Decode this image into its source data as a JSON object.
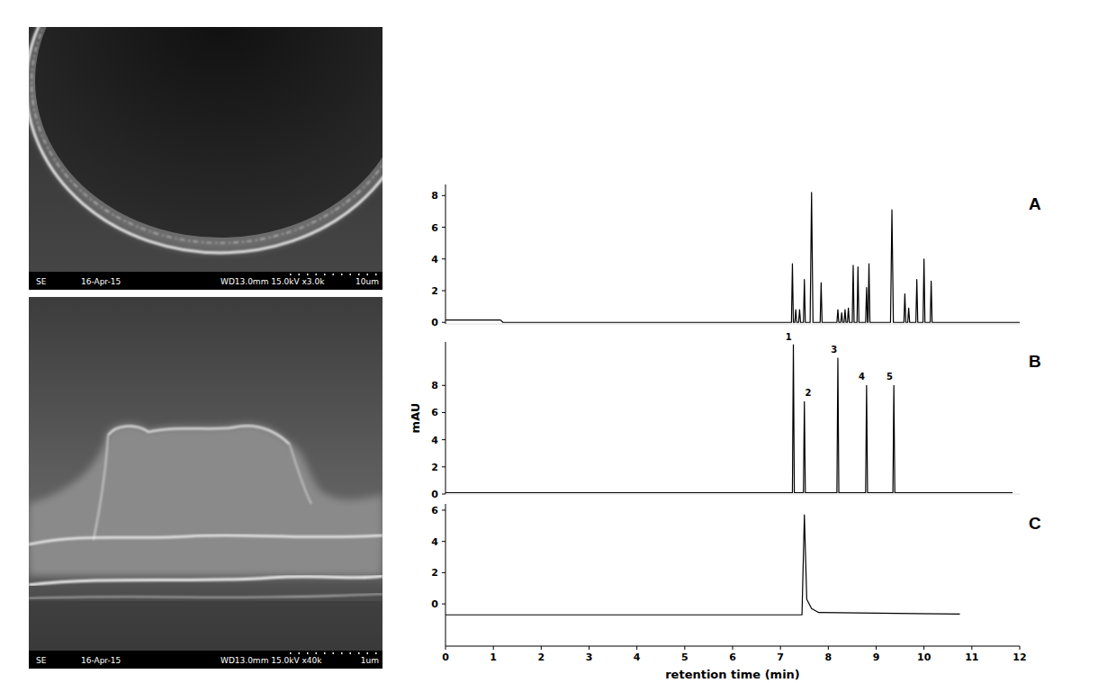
{
  "chart_data": [
    {
      "type": "line",
      "title": "A",
      "color": "#000000",
      "tick_labels": "y",
      "xlim": [
        0,
        12
      ],
      "ylim": [
        -0.1,
        8.7
      ],
      "yticks": [
        0,
        2,
        4,
        6,
        8
      ],
      "x": [
        0,
        1.15,
        1.2,
        7.23,
        7.25,
        7.27,
        7.3,
        7.32,
        7.34,
        7.38,
        7.4,
        7.42,
        7.48,
        7.5,
        7.52,
        7.62,
        7.65,
        7.68,
        7.83,
        7.85,
        7.87,
        8.18,
        8.2,
        8.22,
        8.26,
        8.28,
        8.3,
        8.33,
        8.35,
        8.37,
        8.4,
        8.42,
        8.44,
        8.5,
        8.52,
        8.54,
        8.6,
        8.62,
        8.64,
        8.78,
        8.8,
        8.82,
        8.83,
        8.85,
        8.87,
        9.3,
        9.33,
        9.36,
        9.58,
        9.6,
        9.62,
        9.66,
        9.68,
        9.7,
        9.83,
        9.85,
        9.87,
        9.98,
        10.0,
        10.02,
        10.13,
        10.15,
        10.17,
        12
      ],
      "values": [
        0.15,
        0.15,
        0,
        0,
        3.7,
        0,
        0,
        0.8,
        0,
        0,
        0.8,
        0,
        0,
        2.7,
        0,
        0,
        8.2,
        0,
        0,
        2.5,
        0,
        0,
        0.8,
        0,
        0,
        0.6,
        0,
        0,
        0.8,
        0,
        0,
        0.9,
        0,
        0,
        3.6,
        0,
        0,
        3.5,
        0,
        0,
        2.2,
        0,
        0,
        3.7,
        0,
        0,
        7.1,
        0,
        0,
        1.8,
        0,
        0,
        0.9,
        0,
        0,
        2.7,
        0,
        0,
        4.0,
        0,
        0,
        2.6,
        0,
        0
      ]
    },
    {
      "type": "line",
      "title": "B",
      "y_label": "mAU",
      "color": "#000000",
      "tick_labels": "y",
      "xlim": [
        0,
        12
      ],
      "ylim": [
        0,
        11.2
      ],
      "yticks": [
        0,
        2,
        4,
        6,
        8
      ],
      "x": [
        0,
        7.25,
        7.27,
        7.29,
        7.48,
        7.5,
        7.52,
        8.18,
        8.2,
        8.22,
        8.78,
        8.8,
        8.82,
        9.35,
        9.37,
        9.39,
        11.85
      ],
      "values": [
        0.1,
        0.1,
        11,
        0.1,
        0.1,
        6.8,
        0.1,
        0.1,
        10,
        0.1,
        0.1,
        8,
        0.1,
        0.1,
        8,
        0.1,
        0.1
      ],
      "annotations": [
        {
          "text": "1",
          "x": 7.17,
          "y": 11.35
        },
        {
          "text": "2",
          "x": 7.58,
          "y": 7.2
        },
        {
          "text": "3",
          "x": 8.12,
          "y": 10.4
        },
        {
          "text": "4",
          "x": 8.7,
          "y": 8.4
        },
        {
          "text": "5",
          "x": 9.28,
          "y": 8.4
        }
      ]
    },
    {
      "type": "line",
      "title": "C",
      "x_label": "retention time (min)",
      "color": "#000000",
      "xlim": [
        0,
        12
      ],
      "ylim": [
        -2.7,
        6.4
      ],
      "yticks": [
        0,
        2,
        4,
        6
      ],
      "xticks": [
        0,
        1,
        2,
        3,
        4,
        5,
        6,
        7,
        8,
        9,
        10,
        11,
        12
      ],
      "x": [
        0,
        7.45,
        7.5,
        7.55,
        7.65,
        7.8,
        10.75
      ],
      "values": [
        -0.7,
        -0.7,
        5.7,
        0.3,
        -0.3,
        -0.55,
        -0.65
      ]
    }
  ],
  "sem_images": [
    {
      "detector": "SE",
      "date": "16-Apr-15",
      "conditions": "WD13.0mm 15.0kV x3.0k",
      "scale_bar": "10um"
    },
    {
      "detector": "SE",
      "date": "16-Apr-15",
      "conditions": "WD13.0mm 15.0kV x40k",
      "scale_bar": "1um"
    }
  ]
}
